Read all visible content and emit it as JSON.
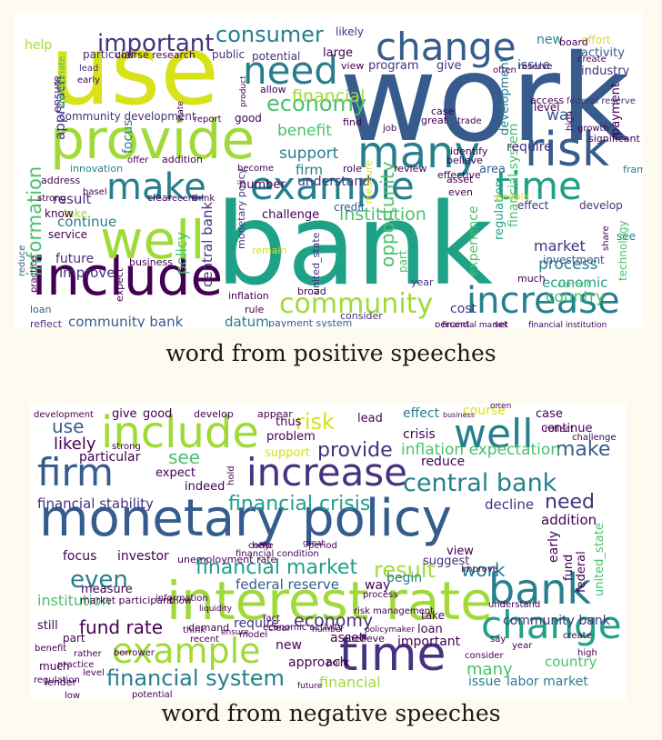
{
  "palette": {
    "c1": "#440154",
    "c2": "#46327e",
    "c3": "#365c8d",
    "c4": "#277f8e",
    "c5": "#1fa187",
    "c6": "#4ac16d",
    "c7": "#a0da39",
    "c8": "#d8e219"
  },
  "positive": {
    "caption": "word from positive speeches",
    "words": [
      {
        "t": "work",
        "c": "#365c8d"
      },
      {
        "t": "bank",
        "c": "#1fa187"
      },
      {
        "t": "use",
        "c": "#d8e219"
      },
      {
        "t": "provide",
        "c": "#a0da39"
      },
      {
        "t": "include",
        "c": "#440154"
      },
      {
        "t": "well",
        "c": "#a0da39"
      },
      {
        "t": "risk",
        "c": "#365c8d"
      },
      {
        "t": "many",
        "c": "#277f8e"
      },
      {
        "t": "change",
        "c": "#365c8d"
      },
      {
        "t": "need",
        "c": "#277f8e"
      },
      {
        "t": "example",
        "c": "#277f8e"
      },
      {
        "t": "make",
        "c": "#277f8e"
      },
      {
        "t": "time",
        "c": "#1fa187"
      },
      {
        "t": "increase",
        "c": "#277f8e"
      },
      {
        "t": "community",
        "c": "#a0da39"
      },
      {
        "t": "information",
        "c": "#4ac16d"
      },
      {
        "t": "important",
        "c": "#46327e"
      },
      {
        "t": "consumer",
        "c": "#277f8e"
      },
      {
        "t": "economy",
        "c": "#4ac16d"
      },
      {
        "t": "benefit",
        "c": "#4ac16d"
      },
      {
        "t": "support",
        "c": "#277f8e"
      },
      {
        "t": "firm",
        "c": "#277f8e"
      },
      {
        "t": "understand",
        "c": "#46327e"
      },
      {
        "t": "number",
        "c": "#440154"
      },
      {
        "t": "institution",
        "c": "#4ac16d"
      },
      {
        "t": "market",
        "c": "#46327e"
      },
      {
        "t": "process",
        "c": "#277f8e"
      },
      {
        "t": "economic",
        "c": "#1fa187"
      },
      {
        "t": "country",
        "c": "#4ac16d"
      },
      {
        "t": "policy",
        "c": "#4ac16d"
      },
      {
        "t": "central bank",
        "c": "#46327e"
      },
      {
        "t": "community bank",
        "c": "#365c8d"
      },
      {
        "t": "datum",
        "c": "#277f8e"
      },
      {
        "t": "cost",
        "c": "#46327e"
      },
      {
        "t": "financial",
        "c": "#a0da39"
      },
      {
        "t": "result",
        "c": "#46327e"
      },
      {
        "t": "continue",
        "c": "#277f8e"
      },
      {
        "t": "improve",
        "c": "#46327e"
      },
      {
        "t": "future",
        "c": "#46327e"
      },
      {
        "t": "service",
        "c": "#440154"
      },
      {
        "t": "area",
        "c": "#365c8d"
      },
      {
        "t": "regulation",
        "c": "#1fa187"
      },
      {
        "t": "financial system",
        "c": "#4ac16d"
      },
      {
        "t": "require",
        "c": "#46327e"
      },
      {
        "t": "way",
        "c": "#365c8d"
      },
      {
        "t": "issue",
        "c": "#365c8d"
      },
      {
        "t": "new",
        "c": "#277f8e"
      },
      {
        "t": "activity",
        "c": "#365c8d"
      },
      {
        "t": "industry",
        "c": "#46327e"
      },
      {
        "t": "effort",
        "c": "#d8e219"
      },
      {
        "t": "opportunity",
        "c": "#4ac16d"
      },
      {
        "t": "experience",
        "c": "#4ac16d"
      },
      {
        "t": "development",
        "c": "#277f8e"
      },
      {
        "t": "approach",
        "c": "#46327e"
      },
      {
        "t": "focus",
        "c": "#277f8e"
      },
      {
        "t": "help",
        "c": "#a0da39"
      },
      {
        "t": "ensure",
        "c": "#46327e"
      },
      {
        "t": "large",
        "c": "#440154"
      },
      {
        "t": "program",
        "c": "#46327e"
      },
      {
        "t": "give",
        "c": "#46327e"
      },
      {
        "t": "public",
        "c": "#46327e"
      },
      {
        "t": "potential",
        "c": "#46327e"
      },
      {
        "t": "likely",
        "c": "#46327e"
      },
      {
        "t": "community development",
        "c": "#46327e"
      },
      {
        "t": "good",
        "c": "#440154"
      },
      {
        "t": "report",
        "c": "#440154"
      },
      {
        "t": "challenge",
        "c": "#440154"
      },
      {
        "t": "innovation",
        "c": "#277f8e"
      },
      {
        "t": "addition",
        "c": "#440154"
      },
      {
        "t": "even",
        "c": "#440154"
      },
      {
        "t": "effect",
        "c": "#46327e"
      },
      {
        "t": "develop",
        "c": "#46327e"
      },
      {
        "t": "see",
        "c": "#277f8e"
      },
      {
        "t": "investment",
        "c": "#365c8d"
      },
      {
        "t": "technology",
        "c": "#4ac16d"
      },
      {
        "t": "credit",
        "c": "#365c8d"
      },
      {
        "t": "part",
        "c": "#4ac16d"
      },
      {
        "t": "year",
        "c": "#46327e"
      },
      {
        "t": "inflation",
        "c": "#440154"
      },
      {
        "t": "rule",
        "c": "#440154"
      },
      {
        "t": "consider",
        "c": "#46327e"
      },
      {
        "t": "loan",
        "c": "#365c8d"
      },
      {
        "t": "reflect",
        "c": "#46327e"
      },
      {
        "t": "business",
        "c": "#440154"
      },
      {
        "t": "take",
        "c": "#a0da39"
      },
      {
        "t": "know",
        "c": "#440154"
      },
      {
        "t": "address",
        "c": "#440154"
      },
      {
        "t": "strong",
        "c": "#440154"
      },
      {
        "t": "reduce",
        "c": "#365c8d"
      },
      {
        "t": "payment system",
        "c": "#365c8d"
      },
      {
        "t": "united_state",
        "c": "#46327e"
      },
      {
        "t": "monetary policy",
        "c": "#46327e"
      },
      {
        "t": "broad",
        "c": "#440154"
      },
      {
        "t": "remain",
        "c": "#d8e219"
      },
      {
        "t": "current",
        "c": "#4ac16d"
      },
      {
        "t": "much",
        "c": "#440154"
      },
      {
        "t": "percent",
        "c": "#440154"
      },
      {
        "t": "set",
        "c": "#440154"
      },
      {
        "t": "financial institution",
        "c": "#440154"
      },
      {
        "t": "financial market",
        "c": "#440154"
      },
      {
        "t": "particular",
        "c": "#46327e"
      },
      {
        "t": "course research",
        "c": "#440154"
      },
      {
        "t": "lead",
        "c": "#46327e"
      },
      {
        "t": "early",
        "c": "#440154"
      },
      {
        "t": "state",
        "c": "#440154"
      },
      {
        "t": "appropriate",
        "c": "#4ac16d"
      },
      {
        "t": "product",
        "c": "#440154"
      },
      {
        "t": "allow",
        "c": "#440154"
      },
      {
        "t": "view",
        "c": "#440154"
      },
      {
        "t": "find",
        "c": "#440154"
      },
      {
        "t": "board",
        "c": "#440154"
      },
      {
        "t": "create",
        "c": "#440154"
      },
      {
        "t": "often",
        "c": "#440154"
      },
      {
        "t": "reserve",
        "c": "#440154"
      },
      {
        "t": "access",
        "c": "#440154"
      },
      {
        "t": "payment",
        "c": "#440154"
      },
      {
        "t": "federal reserve",
        "c": "#46327e"
      },
      {
        "t": "growth",
        "c": "#440154"
      },
      {
        "t": "high",
        "c": "#440154"
      },
      {
        "t": "significant",
        "c": "#440154"
      },
      {
        "t": "framework",
        "c": "#277f8e"
      },
      {
        "t": "role",
        "c": "#440154"
      },
      {
        "t": "review",
        "c": "#440154"
      },
      {
        "t": "asset",
        "c": "#440154"
      },
      {
        "t": "believe",
        "c": "#440154"
      },
      {
        "t": "people",
        "c": "#d8e219"
      },
      {
        "t": "measure",
        "c": "#d8e219"
      },
      {
        "t": "become",
        "c": "#440154"
      },
      {
        "t": "clear",
        "c": "#440154"
      },
      {
        "t": "recent",
        "c": "#440154"
      },
      {
        "t": "think",
        "c": "#440154"
      },
      {
        "t": "basel",
        "c": "#440154"
      },
      {
        "t": "offer",
        "c": "#440154"
      },
      {
        "t": "great",
        "c": "#440154"
      },
      {
        "t": "trade",
        "c": "#440154"
      },
      {
        "t": "case",
        "c": "#440154"
      },
      {
        "t": "job",
        "c": "#440154"
      },
      {
        "t": "effective",
        "c": "#440154"
      },
      {
        "t": "share",
        "c": "#440154"
      },
      {
        "t": "expect",
        "c": "#440154"
      },
      {
        "t": "practice",
        "c": "#440154"
      },
      {
        "t": "identify",
        "c": "#440154"
      },
      {
        "t": "level",
        "c": "#440154"
      },
      {
        "t": "system",
        "c": "#277f8e"
      }
    ]
  },
  "negative": {
    "caption": "word from negative speeches",
    "words": [
      {
        "t": "monetary policy",
        "c": "#365c8d"
      },
      {
        "t": "interest rate",
        "c": "#a0da39"
      },
      {
        "t": "include",
        "c": "#a0da39"
      },
      {
        "t": "well",
        "c": "#277f8e"
      },
      {
        "t": "firm",
        "c": "#365c8d"
      },
      {
        "t": "increase",
        "c": "#46327e"
      },
      {
        "t": "time",
        "c": "#46327e"
      },
      {
        "t": "change",
        "c": "#1fa187"
      },
      {
        "t": "bank",
        "c": "#277f8e"
      },
      {
        "t": "example",
        "c": "#a0da39"
      },
      {
        "t": "central bank",
        "c": "#277f8e"
      },
      {
        "t": "financial system",
        "c": "#277f8e"
      },
      {
        "t": "financial crisis",
        "c": "#1fa187"
      },
      {
        "t": "financial market",
        "c": "#1fa187"
      },
      {
        "t": "result",
        "c": "#a0da39"
      },
      {
        "t": "even",
        "c": "#277f8e"
      },
      {
        "t": "fund rate",
        "c": "#440154"
      },
      {
        "t": "economy",
        "c": "#46327e"
      },
      {
        "t": "risk",
        "c": "#d8e219"
      },
      {
        "t": "provide",
        "c": "#46327e"
      },
      {
        "t": "make",
        "c": "#365c8d"
      },
      {
        "t": "need",
        "c": "#46327e"
      },
      {
        "t": "use",
        "c": "#365c8d"
      },
      {
        "t": "likely",
        "c": "#440154"
      },
      {
        "t": "see",
        "c": "#4ac16d"
      },
      {
        "t": "work",
        "c": "#277f8e"
      },
      {
        "t": "many",
        "c": "#4ac16d"
      },
      {
        "t": "inflation expectation",
        "c": "#4ac16d"
      },
      {
        "t": "financial stability",
        "c": "#46327e"
      },
      {
        "t": "decline",
        "c": "#46327e"
      },
      {
        "t": "addition",
        "c": "#440154"
      },
      {
        "t": "country",
        "c": "#4ac16d"
      },
      {
        "t": "community bank",
        "c": "#46327e"
      },
      {
        "t": "labor market",
        "c": "#277f8e"
      },
      {
        "t": "issue",
        "c": "#277f8e"
      },
      {
        "t": "institution",
        "c": "#4ac16d"
      },
      {
        "t": "financial",
        "c": "#a0da39"
      },
      {
        "t": "important",
        "c": "#440154"
      },
      {
        "t": "approach",
        "c": "#440154"
      },
      {
        "t": "asset",
        "c": "#440154"
      },
      {
        "t": "new",
        "c": "#440154"
      },
      {
        "t": "much",
        "c": "#440154"
      },
      {
        "t": "part",
        "c": "#440154"
      },
      {
        "t": "still",
        "c": "#440154"
      },
      {
        "t": "measure",
        "c": "#440154"
      },
      {
        "t": "federal reserve",
        "c": "#365c8d"
      },
      {
        "t": "require",
        "c": "#46327e"
      },
      {
        "t": "way",
        "c": "#440154"
      },
      {
        "t": "begin",
        "c": "#277f8e"
      },
      {
        "t": "suggest",
        "c": "#46327e"
      },
      {
        "t": "view",
        "c": "#440154"
      },
      {
        "t": "investor",
        "c": "#440154"
      },
      {
        "t": "focus",
        "c": "#440154"
      },
      {
        "t": "expect",
        "c": "#440154"
      },
      {
        "t": "indeed",
        "c": "#440154"
      },
      {
        "t": "particular",
        "c": "#440154"
      },
      {
        "t": "give",
        "c": "#440154"
      },
      {
        "t": "good",
        "c": "#440154"
      },
      {
        "t": "thus",
        "c": "#440154"
      },
      {
        "t": "problem",
        "c": "#440154"
      },
      {
        "t": "support",
        "c": "#d8e219"
      },
      {
        "t": "lead",
        "c": "#440154"
      },
      {
        "t": "effect",
        "c": "#277f8e"
      },
      {
        "t": "course",
        "c": "#d8e219"
      },
      {
        "t": "crisis",
        "c": "#440154"
      },
      {
        "t": "reduce",
        "c": "#440154"
      },
      {
        "t": "case",
        "c": "#440154"
      },
      {
        "t": "continue",
        "c": "#440154"
      },
      {
        "t": "early",
        "c": "#440154"
      },
      {
        "t": "fund",
        "c": "#440154"
      },
      {
        "t": "federal",
        "c": "#440154"
      },
      {
        "t": "united_state",
        "c": "#4ac16d"
      },
      {
        "t": "loan",
        "c": "#440154"
      },
      {
        "t": "take",
        "c": "#440154"
      },
      {
        "t": "unemployment rate",
        "c": "#440154"
      },
      {
        "t": "development",
        "c": "#440154"
      },
      {
        "t": "strong",
        "c": "#440154"
      },
      {
        "t": "appear",
        "c": "#440154"
      },
      {
        "t": "develop",
        "c": "#440154"
      },
      {
        "t": "business",
        "c": "#440154"
      },
      {
        "t": "often",
        "c": "#440154"
      },
      {
        "t": "practice",
        "c": "#440154"
      },
      {
        "t": "rather",
        "c": "#440154"
      },
      {
        "t": "borrower",
        "c": "#440154"
      },
      {
        "t": "market participant",
        "c": "#440154"
      },
      {
        "t": "benefit",
        "c": "#440154"
      },
      {
        "t": "regulation",
        "c": "#440154"
      },
      {
        "t": "level",
        "c": "#440154"
      },
      {
        "t": "number",
        "c": "#440154"
      },
      {
        "t": "policymaker",
        "c": "#440154"
      },
      {
        "t": "consider",
        "c": "#440154"
      },
      {
        "t": "year",
        "c": "#440154"
      },
      {
        "t": "high",
        "c": "#440154"
      },
      {
        "t": "create",
        "c": "#440154"
      },
      {
        "t": "economic activity",
        "c": "#440154"
      },
      {
        "t": "risk management",
        "c": "#440154"
      },
      {
        "t": "potential",
        "c": "#440154"
      },
      {
        "t": "future",
        "c": "#440154"
      },
      {
        "t": "process",
        "c": "#440154"
      },
      {
        "t": "believe",
        "c": "#440154"
      },
      {
        "t": "liquidity",
        "c": "#440154"
      },
      {
        "t": "information",
        "c": "#440154"
      },
      {
        "t": "ensure",
        "c": "#440154"
      },
      {
        "t": "model",
        "c": "#440154"
      },
      {
        "t": "demand",
        "c": "#440154"
      },
      {
        "t": "recent",
        "c": "#440154"
      },
      {
        "t": "point",
        "c": "#440154"
      },
      {
        "t": "show",
        "c": "#440154"
      },
      {
        "t": "clear",
        "c": "#440154"
      },
      {
        "t": "think",
        "c": "#440154"
      },
      {
        "t": "hold",
        "c": "#440154"
      },
      {
        "t": "period",
        "c": "#440154"
      },
      {
        "t": "come",
        "c": "#440154"
      },
      {
        "t": "help",
        "c": "#440154"
      },
      {
        "t": "great",
        "c": "#440154"
      },
      {
        "t": "fact",
        "c": "#440154"
      },
      {
        "t": "lender",
        "c": "#440154"
      },
      {
        "t": "low",
        "c": "#440154"
      },
      {
        "t": "improve",
        "c": "#440154"
      },
      {
        "t": "financial condition",
        "c": "#440154"
      },
      {
        "t": "reflect",
        "c": "#440154"
      },
      {
        "t": "understand",
        "c": "#440154"
      },
      {
        "t": "say",
        "c": "#440154"
      },
      {
        "t": "challenge",
        "c": "#440154"
      }
    ]
  }
}
